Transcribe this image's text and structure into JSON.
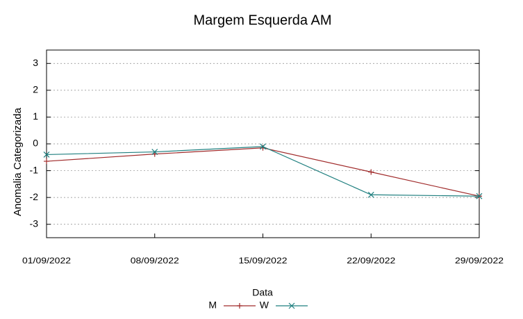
{
  "chart_data": {
    "type": "line",
    "title": "Margem Esquerda AM",
    "x_label": "Data",
    "y_label": "Anomalia Categorizada",
    "categories": [
      "01/09/2022",
      "08/09/2022",
      "15/09/2022",
      "22/09/2022",
      "29/09/2022"
    ],
    "series": [
      {
        "name": "M",
        "color": "#a02a2a",
        "marker": "+",
        "values": [
          -0.65,
          -0.38,
          -0.15,
          -1.05,
          -1.95
        ]
      },
      {
        "name": "W",
        "color": "#1f7f7f",
        "marker": "x",
        "values": [
          -0.4,
          -0.3,
          -0.1,
          -1.9,
          -1.95
        ]
      }
    ],
    "ylim": [
      -3.5,
      3.5
    ],
    "yticks": [
      -3,
      -2,
      -1,
      0,
      1,
      2,
      3
    ],
    "grid": true
  }
}
